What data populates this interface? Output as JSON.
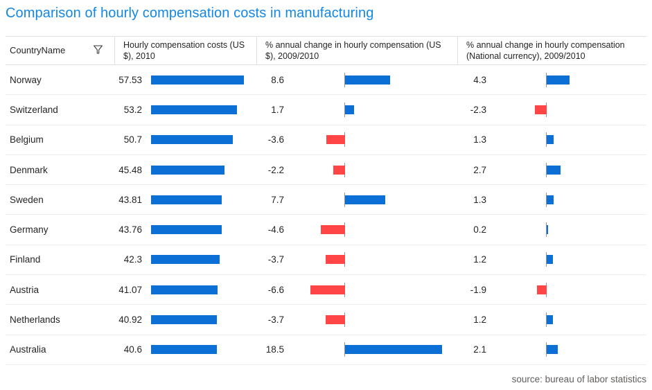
{
  "title": "Comparison of hourly compensation costs in manufacturing",
  "source_note": "source: bureau of labor statistics",
  "colors": {
    "title": "#1287e8",
    "positive_bar": "#0b6fd6",
    "negative_bar": "#ff4545",
    "axis_line": "#949494"
  },
  "columns": [
    {
      "label": "CountryName"
    },
    {
      "label": "Hourly compensation costs (US $), 2010"
    },
    {
      "label": "% annual change in hourly compensation (US $), 2009/2010"
    },
    {
      "label": "% annual change in hourly compensation (National currency), 2009/2010"
    }
  ],
  "chart_data": {
    "type": "table",
    "title": "Comparison of hourly compensation costs in manufacturing",
    "categories": [
      "Norway",
      "Switzerland",
      "Belgium",
      "Denmark",
      "Sweden",
      "Germany",
      "Finland",
      "Austria",
      "Netherlands",
      "Australia"
    ],
    "series": [
      {
        "name": "Hourly compensation costs (US $), 2010",
        "type": "bar",
        "values": [
          57.53,
          53.2,
          50.7,
          45.48,
          43.81,
          43.76,
          42.3,
          41.07,
          40.92,
          40.6
        ],
        "axis_min": 0,
        "axis_max": 57.53,
        "bar_color": "#0b6fd6"
      },
      {
        "name": "% annual change in hourly compensation (US $), 2009/2010",
        "type": "bar",
        "values": [
          8.6,
          1.7,
          -3.6,
          -2.2,
          7.7,
          -4.6,
          -3.7,
          -6.6,
          -3.7,
          18.5
        ],
        "axis_min": -6.6,
        "axis_max": 18.5,
        "positive_color": "#0b6fd6",
        "negative_color": "#ff4545"
      },
      {
        "name": "% annual change in hourly compensation (National currency), 2009/2010",
        "type": "bar",
        "values": [
          4.3,
          -2.3,
          1.3,
          2.7,
          1.3,
          0.2,
          1.2,
          -1.9,
          1.2,
          2.1
        ],
        "axis_min": -6.6,
        "axis_max": 18.5,
        "positive_color": "#0b6fd6",
        "negative_color": "#ff4545"
      }
    ]
  }
}
